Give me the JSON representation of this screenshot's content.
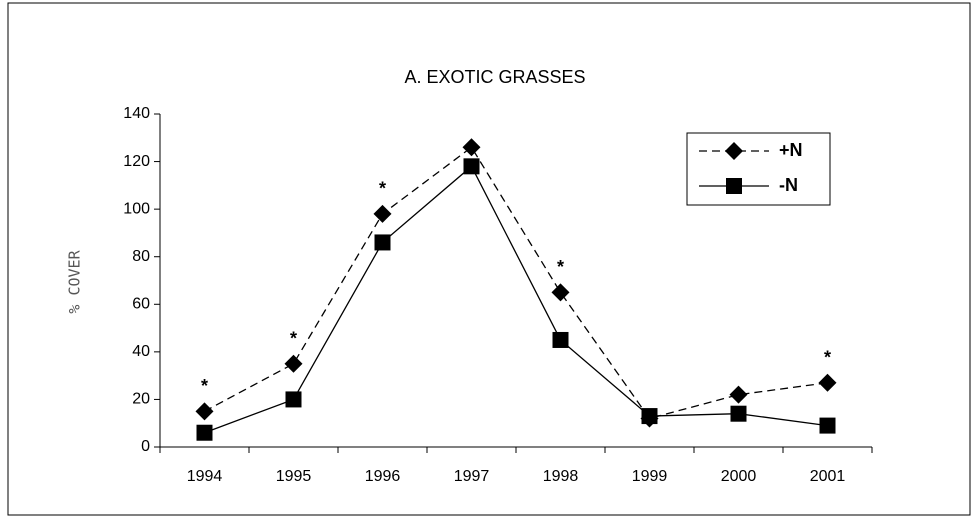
{
  "chart_data": {
    "type": "line",
    "title": "A.  EXOTIC GRASSES",
    "y_label": "% COVER",
    "categories": [
      "1994",
      "1995",
      "1996",
      "1997",
      "1998",
      "1999",
      "2000",
      "2001"
    ],
    "series": [
      {
        "name": "+N",
        "color": "#000000",
        "dash": true,
        "marker": "diamond",
        "values": [
          15,
          35,
          98,
          126,
          65,
          12,
          22,
          27
        ]
      },
      {
        "name": "-N",
        "color": "#000000",
        "dash": false,
        "marker": "square",
        "values": [
          6,
          20,
          86,
          118,
          45,
          13,
          14,
          9
        ]
      }
    ],
    "annotations": [
      {
        "text": "*",
        "x": "1994"
      },
      {
        "text": "*",
        "x": "1995"
      },
      {
        "text": "*",
        "x": "1996"
      },
      {
        "text": "*",
        "x": "1998"
      },
      {
        "text": "*",
        "x": "2001"
      }
    ],
    "ylim": [
      0,
      140
    ],
    "yticks": [
      0,
      20,
      40,
      60,
      80,
      100,
      120,
      140
    ],
    "grid": false,
    "legend": "upper right"
  }
}
